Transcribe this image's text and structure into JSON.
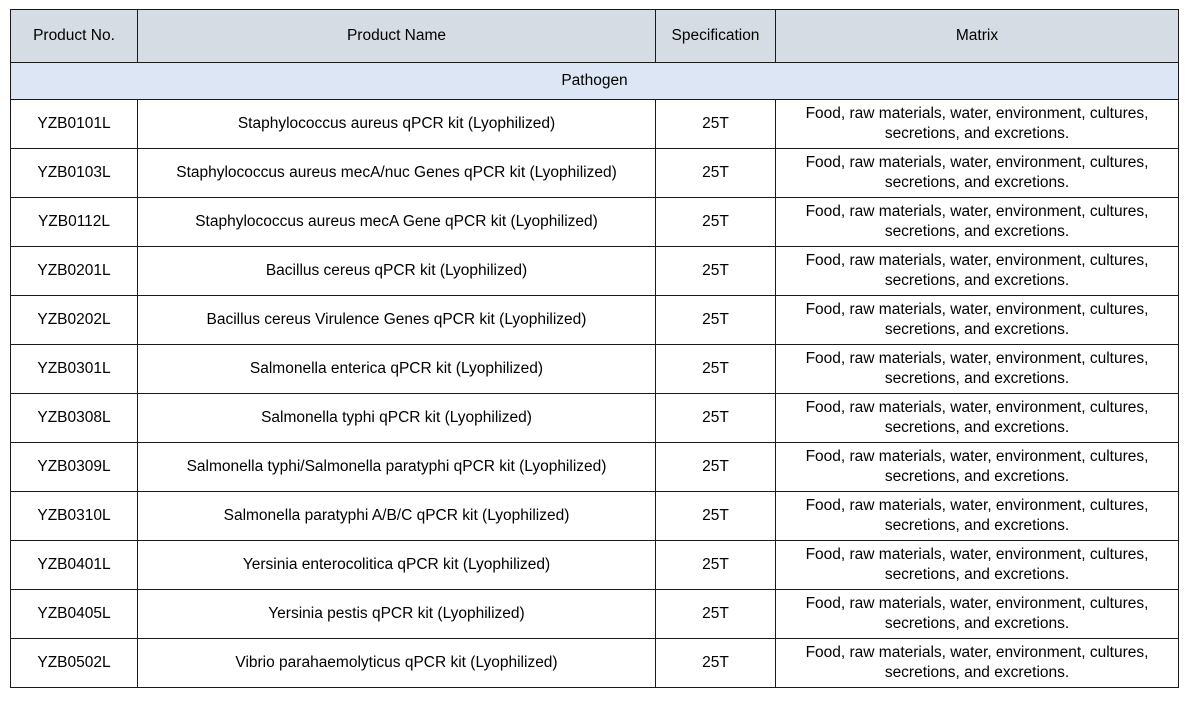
{
  "table": {
    "headers": {
      "product_no": "Product No.",
      "product_name": "Product Name",
      "specification": "Specification",
      "matrix": "Matrix"
    },
    "group_label": "Pathogen",
    "rows": [
      {
        "no": "YZB0101L",
        "name": "Staphylococcus aureus qPCR kit (Lyophilized)",
        "spec": "25T",
        "matrix": "Food, raw materials, water, environment, cultures, secretions, and excretions."
      },
      {
        "no": "YZB0103L",
        "name": "Staphylococcus aureus mecA/nuc Genes qPCR kit (Lyophilized)",
        "spec": "25T",
        "matrix": "Food, raw materials, water, environment, cultures, secretions, and excretions."
      },
      {
        "no": "YZB0112L",
        "name": "Staphylococcus aureus mecA Gene qPCR kit (Lyophilized)",
        "spec": "25T",
        "matrix": "Food, raw materials, water, environment, cultures, secretions, and excretions."
      },
      {
        "no": "YZB0201L",
        "name": "Bacillus cereus qPCR kit (Lyophilized)",
        "spec": "25T",
        "matrix": "Food, raw materials, water, environment, cultures, secretions, and excretions."
      },
      {
        "no": "YZB0202L",
        "name": "Bacillus cereus Virulence Genes qPCR kit (Lyophilized)",
        "spec": "25T",
        "matrix": "Food, raw materials, water, environment, cultures, secretions, and excretions."
      },
      {
        "no": "YZB0301L",
        "name": "Salmonella enterica qPCR kit (Lyophilized)",
        "spec": "25T",
        "matrix": "Food, raw materials, water, environment, cultures, secretions, and excretions."
      },
      {
        "no": "YZB0308L",
        "name": "Salmonella typhi qPCR kit (Lyophilized)",
        "spec": "25T",
        "matrix": "Food, raw materials, water, environment, cultures, secretions, and excretions."
      },
      {
        "no": "YZB0309L",
        "name": "Salmonella typhi/Salmonella paratyphi qPCR kit (Lyophilized)",
        "spec": "25T",
        "matrix": "Food, raw materials, water, environment, cultures, secretions, and excretions."
      },
      {
        "no": "YZB0310L",
        "name": "Salmonella paratyphi A/B/C qPCR kit (Lyophilized)",
        "spec": "25T",
        "matrix": "Food, raw materials, water, environment, cultures, secretions, and excretions."
      },
      {
        "no": "YZB0401L",
        "name": "Yersinia enterocolitica qPCR kit (Lyophilized)",
        "spec": "25T",
        "matrix": "Food, raw materials, water, environment, cultures, secretions, and excretions."
      },
      {
        "no": "YZB0405L",
        "name": "Yersinia pestis qPCR kit (Lyophilized)",
        "spec": "25T",
        "matrix": "Food, raw materials, water, environment, cultures, secretions, and excretions."
      },
      {
        "no": "YZB0502L",
        "name": "Vibrio parahaemolyticus qPCR kit (Lyophilized)",
        "spec": "25T",
        "matrix": "Food, raw materials, water, environment, cultures, secretions, and excretions."
      }
    ]
  },
  "colors": {
    "header_bg": "#d6dce4",
    "group_bg": "#dce6f5",
    "border": "#1a1a1a"
  }
}
